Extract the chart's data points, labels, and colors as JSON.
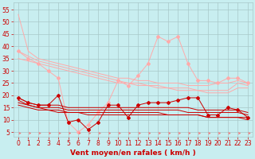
{
  "background_color": "#c8eef0",
  "grid_color": "#a8c8c8",
  "xlabel": "Vent moyen/en rafales ( km/h )",
  "xlabel_color": "#cc0000",
  "xlabel_fontsize": 6.5,
  "tick_color": "#cc0000",
  "tick_fontsize": 5.5,
  "ylim": [
    3,
    58
  ],
  "xlim": [
    -0.5,
    23.5
  ],
  "yticks": [
    5,
    10,
    15,
    20,
    25,
    30,
    35,
    40,
    45,
    50,
    55
  ],
  "xticks": [
    0,
    1,
    2,
    3,
    4,
    5,
    6,
    7,
    8,
    9,
    10,
    11,
    12,
    13,
    14,
    15,
    16,
    17,
    18,
    19,
    20,
    21,
    22,
    23
  ],
  "light_pink_lines": [
    {
      "y": [
        53,
        38,
        35,
        34,
        33,
        32,
        31,
        30,
        29,
        28,
        27,
        27,
        26,
        26,
        25,
        25,
        25,
        24,
        24,
        24,
        25,
        25,
        26,
        25
      ],
      "marker": false
    },
    {
      "y": [
        38,
        36,
        34,
        33,
        32,
        31,
        30,
        29,
        28,
        27,
        26,
        25,
        25,
        24,
        24,
        23,
        23,
        23,
        22,
        22,
        22,
        22,
        25,
        24
      ],
      "marker": false
    },
    {
      "y": [
        35,
        34,
        33,
        32,
        31,
        30,
        29,
        28,
        27,
        26,
        25,
        25,
        24,
        24,
        23,
        23,
        22,
        22,
        22,
        21,
        21,
        21,
        23,
        23
      ],
      "marker": false
    },
    {
      "y": [
        38,
        35,
        33,
        30,
        27,
        9,
        5,
        8,
        13,
        17,
        26,
        24,
        28,
        33,
        44,
        42,
        44,
        33,
        26,
        26,
        25,
        27,
        27,
        25
      ],
      "marker": true
    }
  ],
  "dark_red_lines": [
    {
      "y": [
        19,
        17,
        16,
        16,
        20,
        9,
        10,
        6,
        9,
        16,
        16,
        11,
        16,
        17,
        17,
        17,
        18,
        19,
        19,
        12,
        12,
        15,
        14,
        11
      ],
      "marker": true
    },
    {
      "y": [
        19,
        17,
        16,
        16,
        16,
        15,
        15,
        15,
        15,
        15,
        15,
        15,
        15,
        15,
        15,
        15,
        15,
        15,
        14,
        14,
        14,
        14,
        14,
        13
      ],
      "marker": false
    },
    {
      "y": [
        18,
        16,
        15,
        15,
        15,
        14,
        14,
        14,
        14,
        14,
        14,
        14,
        14,
        14,
        14,
        14,
        14,
        13,
        13,
        13,
        13,
        13,
        13,
        12
      ],
      "marker": false
    },
    {
      "y": [
        17,
        16,
        15,
        14,
        14,
        13,
        13,
        13,
        13,
        13,
        13,
        13,
        13,
        13,
        13,
        12,
        12,
        12,
        12,
        11,
        11,
        11,
        11,
        11
      ],
      "marker": false
    },
    {
      "y": [
        16,
        15,
        14,
        14,
        13,
        13,
        13,
        12,
        12,
        12,
        12,
        12,
        12,
        12,
        12,
        12,
        12,
        12,
        12,
        11,
        11,
        11,
        11,
        10
      ],
      "marker": false
    }
  ],
  "arrow_color": "#ff6666",
  "light_pink_color": "#ffaaaa",
  "dark_red_color": "#cc0000",
  "marker_size": 2.0,
  "linewidth": 0.7
}
